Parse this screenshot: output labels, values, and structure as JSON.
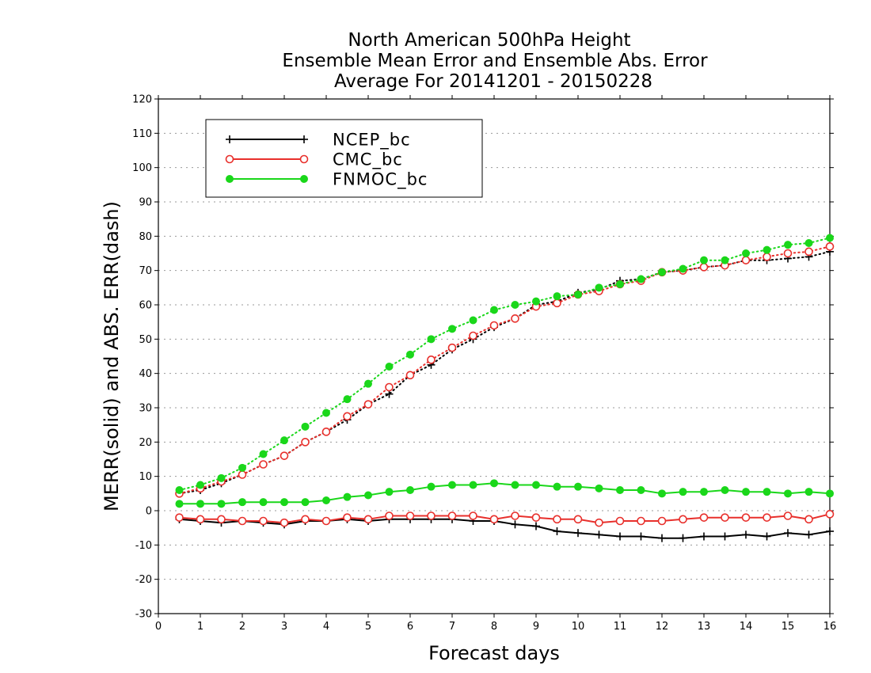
{
  "chart_data": {
    "type": "line",
    "title": [
      "North American 500hPa Height",
      "Ensemble Mean Error and Ensemble Abs. Error",
      "Average For 20141201 - 20150228"
    ],
    "xlabel": "Forecast days",
    "ylabel": "MERR(solid) and ABS. ERR(dash)",
    "xlim": [
      0,
      16
    ],
    "ylim": [
      -30,
      120
    ],
    "xticks": [
      "0",
      "1",
      "2",
      "3",
      "4",
      "5",
      "6",
      "7",
      "8",
      "9",
      "10",
      "11",
      "12",
      "13",
      "14",
      "15",
      "16"
    ],
    "yticks": [
      "-30",
      "-20",
      "-10",
      "0",
      "10",
      "20",
      "30",
      "40",
      "50",
      "60",
      "70",
      "80",
      "90",
      "100",
      "110",
      "120"
    ],
    "grid": true,
    "legend_position": "top-left",
    "x": [
      0.5,
      1,
      1.5,
      2,
      2.5,
      3,
      3.5,
      4,
      4.5,
      5,
      5.5,
      6,
      6.5,
      7,
      7.5,
      8,
      8.5,
      9,
      9.5,
      10,
      10.5,
      11,
      11.5,
      12,
      12.5,
      13,
      13.5,
      14,
      14.5,
      15,
      15.5,
      16
    ],
    "series": [
      {
        "name": "NCEP_bc",
        "color": "#000000",
        "marker": "plus",
        "merr": [
          -2.5,
          -3,
          -3.5,
          -3,
          -3.5,
          -4,
          -3,
          -3,
          -2.5,
          -3,
          -2.5,
          -2.5,
          -2.5,
          -2.5,
          -3,
          -3,
          -4,
          -4.5,
          -6,
          -6.5,
          -7,
          -7.5,
          -7.5,
          -8,
          -8,
          -7.5,
          -7.5,
          -7,
          -7.5,
          -6.5,
          -7,
          -6
        ],
        "abs": [
          5,
          6,
          8,
          10.5,
          13.5,
          16,
          20,
          23,
          26.5,
          31,
          34,
          39.5,
          42.5,
          47,
          50,
          53.5,
          56,
          60,
          61,
          63.5,
          64.5,
          67,
          67.5,
          69.5,
          70,
          71,
          71.5,
          73,
          73,
          73.5,
          74,
          75.5
        ]
      },
      {
        "name": "CMC_bc",
        "color": "#e8302c",
        "marker": "open-circle",
        "merr": [
          -2,
          -2.5,
          -2.5,
          -3,
          -3,
          -3.5,
          -2.5,
          -3,
          -2,
          -2.5,
          -1.5,
          -1.5,
          -1.5,
          -1.5,
          -1.5,
          -2.5,
          -1.5,
          -2,
          -2.5,
          -2.5,
          -3.5,
          -3,
          -3,
          -3,
          -2.5,
          -2,
          -2,
          -2,
          -2,
          -1.5,
          -2.5,
          -1
        ],
        "abs": [
          5,
          6.5,
          8.5,
          10.5,
          13.5,
          16,
          20,
          23,
          27.5,
          31,
          36,
          39.5,
          44,
          47.5,
          51,
          54,
          56,
          59.5,
          60.5,
          63,
          64,
          66,
          67,
          69.5,
          70,
          71,
          71.5,
          73,
          74,
          75,
          75.5,
          77
        ]
      },
      {
        "name": "FNMOC_bc",
        "color": "#1ad71a",
        "marker": "filled-circle",
        "merr": [
          2,
          2,
          2,
          2.5,
          2.5,
          2.5,
          2.5,
          3,
          4,
          4.5,
          5.5,
          6,
          7,
          7.5,
          7.5,
          8,
          7.5,
          7.5,
          7,
          7,
          6.5,
          6,
          6,
          5,
          5.5,
          5.5,
          6,
          5.5,
          5.5,
          5,
          5.5,
          5
        ],
        "abs": [
          6,
          7.5,
          9.5,
          12.5,
          16.5,
          20.5,
          24.5,
          28.5,
          32.5,
          37,
          42,
          45.5,
          50,
          53,
          55.5,
          58.5,
          60,
          61,
          62.5,
          63,
          65,
          66,
          67.5,
          69.5,
          70.5,
          73,
          73,
          75,
          76,
          77.5,
          78,
          79.5
        ]
      }
    ]
  }
}
